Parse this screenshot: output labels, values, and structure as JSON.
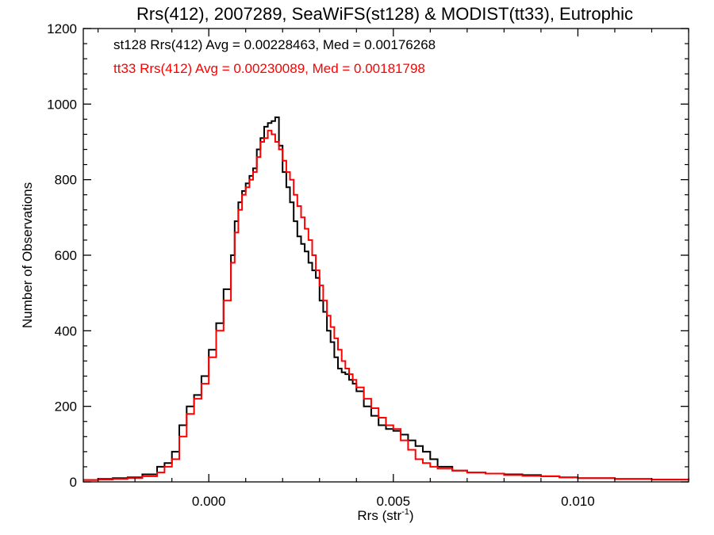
{
  "chart_data": {
    "type": "histogram",
    "title": "Rrs(412), 2007289, SeaWiFS(st128) & MODIST(tt33), Eutrophic",
    "xlabel_base": "Rrs (str",
    "xlabel_sup": "-1",
    "xlabel_end": ")",
    "ylabel": "Number of Observations",
    "xlim": [
      -0.0034,
      0.013
    ],
    "ylim": [
      0,
      1200
    ],
    "xticks": [
      0.0,
      0.005,
      0.01
    ],
    "xtick_labels": [
      "0.000",
      "0.005",
      "0.010"
    ],
    "yticks": [
      0,
      200,
      400,
      600,
      800,
      1000,
      1200
    ],
    "ytick_labels": [
      "0",
      "200",
      "400",
      "600",
      "800",
      "1000",
      "1200"
    ],
    "legend_placement": "top-left",
    "grid": false,
    "series": [
      {
        "name": "st128",
        "label": "st128 Rrs(412) Avg = 0.00228463, Med = 0.00176268",
        "color": "#000000",
        "points": [
          [
            -0.0034,
            5
          ],
          [
            -0.003,
            8
          ],
          [
            -0.0026,
            10
          ],
          [
            -0.0022,
            12
          ],
          [
            -0.0018,
            20
          ],
          [
            -0.0014,
            40
          ],
          [
            -0.0012,
            50
          ],
          [
            -0.001,
            80
          ],
          [
            -0.0008,
            150
          ],
          [
            -0.0006,
            200
          ],
          [
            -0.0004,
            230
          ],
          [
            -0.0002,
            280
          ],
          [
            0.0,
            350
          ],
          [
            0.0002,
            420
          ],
          [
            0.0004,
            510
          ],
          [
            0.0006,
            600
          ],
          [
            0.0007,
            690
          ],
          [
            0.0008,
            740
          ],
          [
            0.0009,
            770
          ],
          [
            0.001,
            790
          ],
          [
            0.0011,
            810
          ],
          [
            0.0012,
            830
          ],
          [
            0.0013,
            880
          ],
          [
            0.0014,
            910
          ],
          [
            0.0015,
            940
          ],
          [
            0.0016,
            950
          ],
          [
            0.0017,
            955
          ],
          [
            0.0018,
            965
          ],
          [
            0.0019,
            890
          ],
          [
            0.002,
            820
          ],
          [
            0.0021,
            780
          ],
          [
            0.0022,
            740
          ],
          [
            0.0023,
            690
          ],
          [
            0.0024,
            650
          ],
          [
            0.0025,
            630
          ],
          [
            0.0026,
            610
          ],
          [
            0.0027,
            580
          ],
          [
            0.0028,
            560
          ],
          [
            0.0029,
            540
          ],
          [
            0.003,
            480
          ],
          [
            0.0031,
            450
          ],
          [
            0.0032,
            400
          ],
          [
            0.0033,
            370
          ],
          [
            0.0034,
            330
          ],
          [
            0.0035,
            300
          ],
          [
            0.0036,
            290
          ],
          [
            0.0037,
            285
          ],
          [
            0.0038,
            270
          ],
          [
            0.0039,
            260
          ],
          [
            0.004,
            240
          ],
          [
            0.0042,
            200
          ],
          [
            0.0044,
            175
          ],
          [
            0.0046,
            150
          ],
          [
            0.0048,
            140
          ],
          [
            0.005,
            135
          ],
          [
            0.0052,
            125
          ],
          [
            0.0054,
            110
          ],
          [
            0.0056,
            95
          ],
          [
            0.0058,
            80
          ],
          [
            0.006,
            60
          ],
          [
            0.0062,
            40
          ],
          [
            0.0066,
            30
          ],
          [
            0.007,
            25
          ],
          [
            0.0075,
            22
          ],
          [
            0.008,
            20
          ],
          [
            0.0085,
            18
          ],
          [
            0.009,
            15
          ],
          [
            0.0095,
            12
          ],
          [
            0.01,
            10
          ],
          [
            0.011,
            8
          ],
          [
            0.012,
            6
          ],
          [
            0.013,
            5
          ]
        ]
      },
      {
        "name": "tt33",
        "label": "tt33 Rrs(412) Avg = 0.00230089, Med = 0.00181798",
        "color": "#ff0000",
        "points": [
          [
            -0.0034,
            5
          ],
          [
            -0.003,
            6
          ],
          [
            -0.0026,
            8
          ],
          [
            -0.0022,
            10
          ],
          [
            -0.0018,
            15
          ],
          [
            -0.0014,
            25
          ],
          [
            -0.0012,
            40
          ],
          [
            -0.001,
            60
          ],
          [
            -0.0008,
            120
          ],
          [
            -0.0006,
            180
          ],
          [
            -0.0004,
            220
          ],
          [
            -0.0002,
            260
          ],
          [
            0.0,
            330
          ],
          [
            0.0002,
            400
          ],
          [
            0.0004,
            480
          ],
          [
            0.0006,
            580
          ],
          [
            0.0007,
            660
          ],
          [
            0.0008,
            720
          ],
          [
            0.0009,
            760
          ],
          [
            0.001,
            780
          ],
          [
            0.0011,
            800
          ],
          [
            0.0012,
            820
          ],
          [
            0.0013,
            860
          ],
          [
            0.0014,
            900
          ],
          [
            0.0015,
            910
          ],
          [
            0.0016,
            930
          ],
          [
            0.0017,
            920
          ],
          [
            0.0018,
            900
          ],
          [
            0.0019,
            880
          ],
          [
            0.002,
            850
          ],
          [
            0.0021,
            820
          ],
          [
            0.0022,
            800
          ],
          [
            0.0023,
            760
          ],
          [
            0.0024,
            730
          ],
          [
            0.0025,
            700
          ],
          [
            0.0026,
            670
          ],
          [
            0.0027,
            640
          ],
          [
            0.0028,
            600
          ],
          [
            0.0029,
            560
          ],
          [
            0.003,
            520
          ],
          [
            0.0031,
            480
          ],
          [
            0.0032,
            440
          ],
          [
            0.0033,
            410
          ],
          [
            0.0034,
            380
          ],
          [
            0.0035,
            350
          ],
          [
            0.0036,
            320
          ],
          [
            0.0037,
            300
          ],
          [
            0.0038,
            285
          ],
          [
            0.0039,
            270
          ],
          [
            0.004,
            250
          ],
          [
            0.0042,
            220
          ],
          [
            0.0044,
            195
          ],
          [
            0.0046,
            170
          ],
          [
            0.0048,
            150
          ],
          [
            0.005,
            140
          ],
          [
            0.0052,
            110
          ],
          [
            0.0054,
            85
          ],
          [
            0.0056,
            60
          ],
          [
            0.0058,
            50
          ],
          [
            0.006,
            40
          ],
          [
            0.0062,
            35
          ],
          [
            0.0066,
            30
          ],
          [
            0.007,
            25
          ],
          [
            0.0075,
            22
          ],
          [
            0.008,
            18
          ],
          [
            0.0085,
            16
          ],
          [
            0.009,
            15
          ],
          [
            0.0095,
            12
          ],
          [
            0.01,
            10
          ],
          [
            0.011,
            8
          ],
          [
            0.012,
            6
          ],
          [
            0.013,
            5
          ]
        ]
      }
    ]
  }
}
